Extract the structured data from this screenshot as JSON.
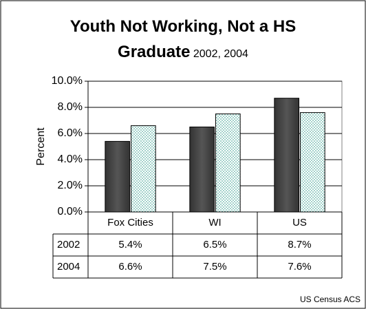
{
  "chart_data": {
    "type": "bar",
    "title": "Youth Not Working, Not a HS Graduate",
    "subtitle": "2002, 2004",
    "y_label": "Percent",
    "source": "US Census ACS",
    "categories": [
      "Fox Cities",
      "WI",
      "US"
    ],
    "series": [
      {
        "name": "2002",
        "color": "#333333",
        "values": [
          5.4,
          6.5,
          8.7
        ],
        "value_labels": [
          "5.4%",
          "6.5%",
          "8.7%"
        ]
      },
      {
        "name": "2004",
        "color": "#5fb3a6",
        "values": [
          6.6,
          7.5,
          7.6
        ],
        "value_labels": [
          "6.6%",
          "7.5%",
          "7.6%"
        ]
      }
    ],
    "ylim": [
      0,
      10
    ],
    "yticks": [
      {
        "value": 0,
        "label": "0.0%"
      },
      {
        "value": 2,
        "label": "2.0%"
      },
      {
        "value": 4,
        "label": "4.0%"
      },
      {
        "value": 6,
        "label": "6.0%"
      },
      {
        "value": 8,
        "label": "8.0%"
      },
      {
        "value": 10,
        "label": "10.0%"
      }
    ],
    "grid": true
  }
}
